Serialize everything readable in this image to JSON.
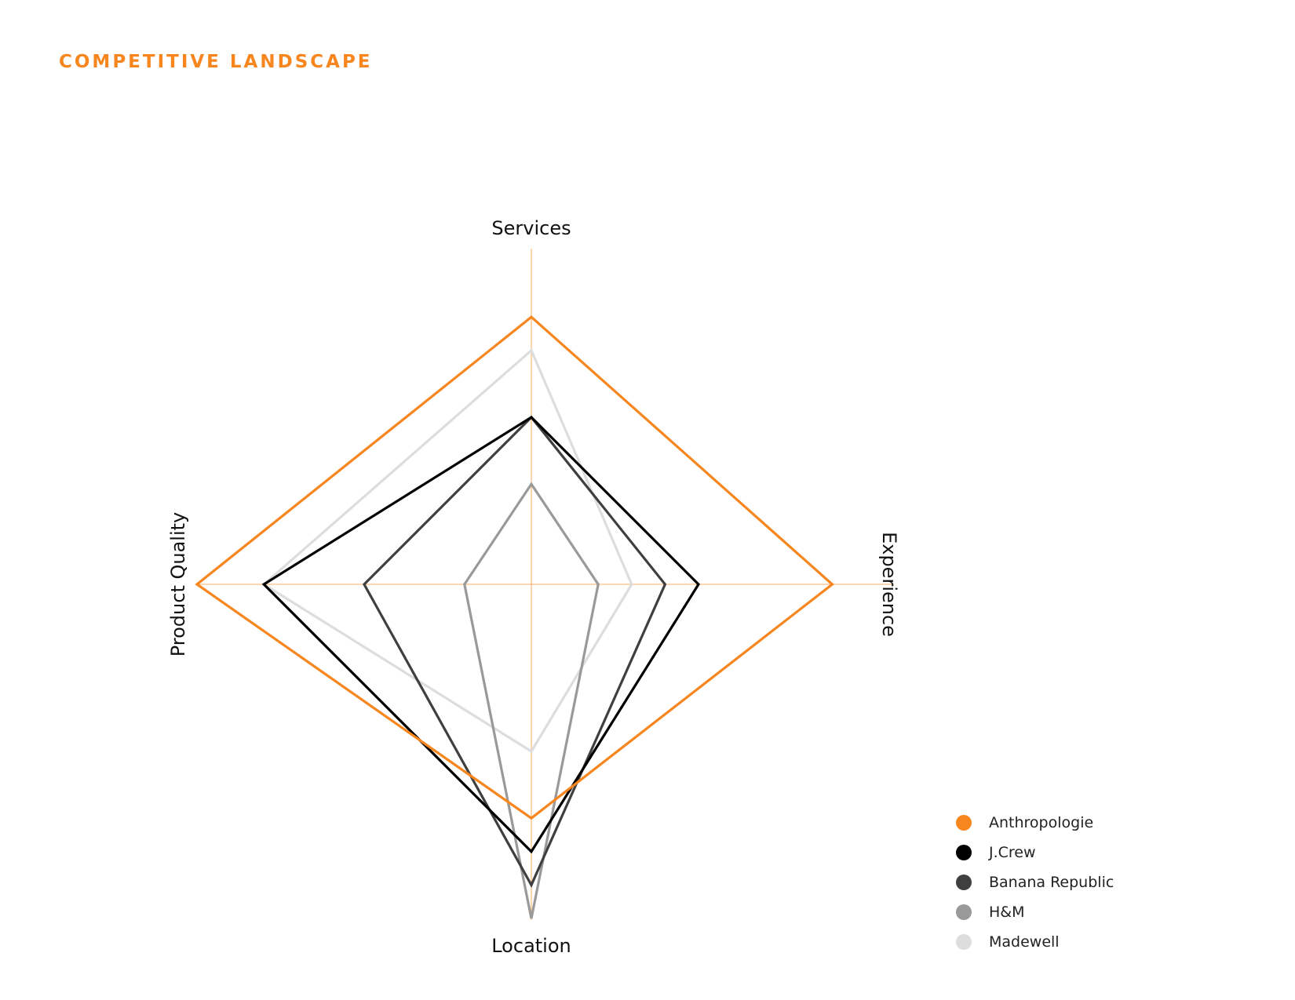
{
  "page": {
    "title": "COMPETITIVE LANDSCAPE"
  },
  "chart_data": {
    "type": "radar",
    "title": "",
    "axes": [
      "Services",
      "Experience",
      "Location",
      "Product Quality"
    ],
    "range": [
      0,
      10
    ],
    "grid": false,
    "legend_position": "bottom-right",
    "series": [
      {
        "name": "Anthropologie",
        "color": "#f7861e",
        "values": [
          8,
          9,
          7,
          10
        ]
      },
      {
        "name": "J.Crew",
        "color": "#000000",
        "values": [
          5,
          5,
          8,
          8
        ]
      },
      {
        "name": "Banana Republic",
        "color": "#3f3f3f",
        "values": [
          5,
          4,
          9,
          5
        ]
      },
      {
        "name": "H&M",
        "color": "#999999",
        "values": [
          3,
          2,
          10,
          2
        ]
      },
      {
        "name": "Madewell",
        "color": "#dddddd",
        "values": [
          7,
          3,
          5,
          8
        ]
      }
    ]
  }
}
